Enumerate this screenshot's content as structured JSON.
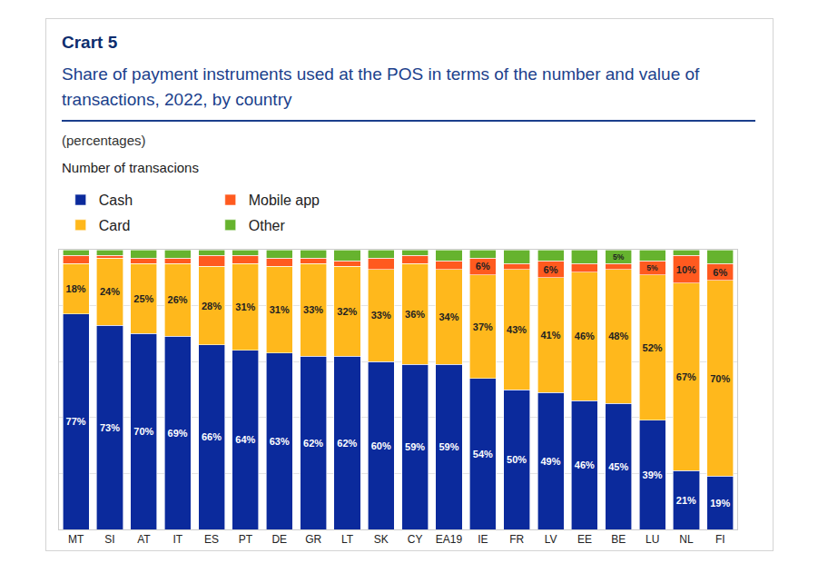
{
  "chart_data": {
    "type": "bar",
    "title": "Share of payment instruments used at the POS in terms of the number and value of transactions, 2022, by country",
    "subtitle": "Number of transacions",
    "ylabel": "(percentages)",
    "annotations": [
      "Crart 5"
    ],
    "categories": [
      "MT",
      "SI",
      "AT",
      "IT",
      "ES",
      "PT",
      "DE",
      "GR",
      "LT",
      "SK",
      "CY",
      "EA19",
      "IE",
      "FR",
      "LV",
      "EE",
      "BE",
      "LU",
      "NL",
      "FI"
    ],
    "stacked": true,
    "data_labels": true,
    "tick_labels": "x",
    "grid": true,
    "legend": "top left",
    "ylim": [
      0,
      100
    ],
    "yticks": [
      0,
      20,
      40,
      60,
      80,
      100
    ],
    "series": [
      {
        "name": "Cash",
        "color": "#0b2a9c",
        "values": [
          77,
          73,
          70,
          69,
          66,
          64,
          63,
          62,
          62,
          60,
          59,
          59,
          54,
          50,
          49,
          46,
          45,
          39,
          21,
          19
        ],
        "value_labels": [
          "77%",
          "73%",
          "70%",
          "69%",
          "66%",
          "64%",
          "63%",
          "62%",
          "62%",
          "60%",
          "59%",
          "59%",
          "54%",
          "50%",
          "49%",
          "46%",
          "45%",
          "39%",
          "21%",
          "19%"
        ]
      },
      {
        "name": "Card",
        "color": "#ffb81c",
        "values": [
          18,
          24,
          25,
          26,
          28,
          31,
          31,
          33,
          32,
          33,
          36,
          34,
          37,
          43,
          41,
          46,
          48,
          52,
          67,
          70
        ],
        "value_labels": [
          "18%",
          "24%",
          "25%",
          "26%",
          "28%",
          "31%",
          "31%",
          "33%",
          "32%",
          "33%",
          "36%",
          "34%",
          "37%",
          "43%",
          "41%",
          "46%",
          "48%",
          "52%",
          "67%",
          "70%"
        ]
      },
      {
        "name": "Mobile app",
        "color": "#ff5a1f",
        "values": [
          3,
          1,
          2,
          2,
          4,
          3,
          3,
          2,
          2,
          4,
          3,
          3,
          6,
          2,
          6,
          3,
          2,
          5,
          10,
          6
        ],
        "value_labels": [
          null,
          null,
          null,
          null,
          null,
          null,
          null,
          null,
          null,
          null,
          null,
          null,
          "6%",
          null,
          "6%",
          null,
          null,
          "5%",
          "10%",
          "6%"
        ]
      },
      {
        "name": "Other",
        "color": "#66b32e",
        "values": [
          2,
          2,
          3,
          3,
          2,
          2,
          3,
          3,
          4,
          3,
          2,
          4,
          3,
          5,
          4,
          5,
          5,
          4,
          2,
          5
        ],
        "value_labels": [
          null,
          null,
          null,
          null,
          null,
          null,
          null,
          null,
          null,
          null,
          null,
          null,
          null,
          null,
          null,
          null,
          "5%",
          null,
          null,
          null
        ]
      }
    ]
  }
}
